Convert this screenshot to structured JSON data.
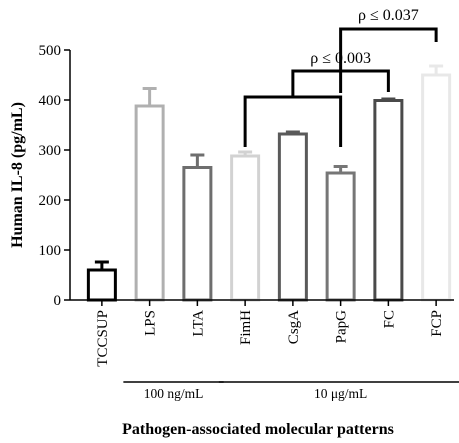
{
  "chart_data": {
    "type": "bar",
    "title": "",
    "xlabel": "Pathogen-associated molecular patterns",
    "ylabel": "Human IL-8 (pg/mL)",
    "ylim": [
      0,
      500
    ],
    "yticks": [
      "0",
      "100",
      "200",
      "300",
      "400",
      "500"
    ],
    "categories": [
      "TCCSUP",
      "LPS",
      "LTA",
      "FimH",
      "CsgA",
      "PapG",
      "FC",
      "FCP"
    ],
    "values": [
      60,
      388,
      265,
      288,
      332,
      254,
      399,
      450
    ],
    "errors": [
      16,
      35,
      25,
      8,
      4,
      13,
      3,
      18
    ],
    "bar_colors": [
      "#000000",
      "#b0b0b0",
      "#6e6e6e",
      "#d2d2d2",
      "#5a5a5a",
      "#767676",
      "#4a4a4a",
      "#e8e8e8"
    ],
    "grid": false,
    "annotations": [
      {
        "label": "ρ ≤ 0.003",
        "from": [
          "FimH",
          "PapG"
        ],
        "to": "FC"
      },
      {
        "label": "ρ ≤ 0.037",
        "from": [
          "PapG"
        ],
        "to": "FCP"
      }
    ],
    "groups": [
      {
        "label": "100 ng/mL",
        "categories": [
          "LPS",
          "LTA"
        ]
      },
      {
        "label": "10 μg/mL",
        "categories": [
          "FimH",
          "CsgA",
          "PapG",
          "FC",
          "FCP"
        ]
      }
    ]
  }
}
